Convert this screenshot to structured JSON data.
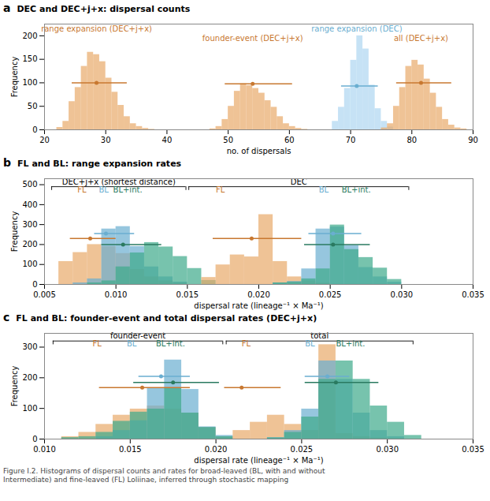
{
  "chart_data": [
    {
      "type": "histogram",
      "panel_label": "a",
      "title": "DEC and DEC+j+x: dispersal counts",
      "xlabel": "no. of dispersals",
      "ylabel": "Frequency",
      "xlim": [
        20,
        90
      ],
      "xticks": [
        20,
        30,
        40,
        50,
        60,
        70,
        80,
        90
      ],
      "ylim": [
        0,
        225
      ],
      "yticks": [
        0,
        50,
        100,
        150,
        200
      ],
      "grid": false,
      "series": [
        {
          "name": "range expansion (DEC+j+x)",
          "color": "#E8A96A",
          "median_color": "#C87830",
          "bins": [
            22,
            23,
            24,
            25,
            26,
            27,
            28,
            29,
            30,
            31,
            32,
            33,
            34,
            35,
            36,
            37,
            38
          ],
          "counts": [
            5,
            18,
            60,
            90,
            135,
            165,
            160,
            145,
            110,
            80,
            52,
            28,
            13,
            7,
            3,
            1
          ],
          "median": {
            "x": 28.5,
            "y": 100,
            "xmin": 24.5,
            "xmax": 33.5
          }
        },
        {
          "name": "founder-event (DEC+j+x)",
          "color": "#E8A96A",
          "median_color": "#C87830",
          "bins": [
            47,
            48,
            49,
            50,
            51,
            52,
            53,
            54,
            55,
            56,
            57,
            58,
            59,
            60,
            61,
            62,
            63
          ],
          "counts": [
            2,
            7,
            22,
            50,
            82,
            98,
            94,
            88,
            78,
            62,
            48,
            28,
            13,
            7,
            3,
            1
          ],
          "median": {
            "x": 54.0,
            "y": 98,
            "xmin": 49.5,
            "xmax": 60.5
          }
        },
        {
          "name": "range expansion (DEC)",
          "color": "#AED6F1",
          "median_color": "#6AAED0",
          "bins": [
            67,
            68,
            69,
            70,
            71,
            72,
            73,
            74,
            75,
            76,
            77
          ],
          "counts": [
            18,
            48,
            88,
            148,
            200,
            172,
            95,
            45,
            18,
            6
          ],
          "median": {
            "x": 71.0,
            "y": 93,
            "xmin": 68.5,
            "xmax": 74.5
          }
        },
        {
          "name": "all (DEC+j+x)",
          "color": "#E8A96A",
          "median_color": "#C87830",
          "bins": [
            75,
            76,
            77,
            78,
            79,
            80,
            81,
            82,
            83,
            84,
            85,
            86,
            87,
            88,
            89
          ],
          "counts": [
            4,
            13,
            50,
            90,
            135,
            148,
            138,
            108,
            78,
            48,
            22,
            10,
            4,
            2
          ],
          "median": {
            "x": 81.5,
            "y": 100,
            "xmin": 77.5,
            "xmax": 86.5
          }
        }
      ]
    },
    {
      "type": "histogram",
      "panel_label": "b",
      "title": "FL and BL: range expansion rates",
      "xlabel": "dispersal rate (lineage⁻¹ × Ma⁻¹)",
      "ylabel": "Frequency",
      "xlim": [
        0.005,
        0.035
      ],
      "xticks": [
        0.005,
        {
          "value": 0.01,
          "label": "0.010"
        },
        0.015,
        {
          "value": 0.02,
          "label": "0.020"
        },
        0.025,
        {
          "value": 0.03,
          "label": "0.030"
        },
        0.035
      ],
      "ylim": [
        0,
        530
      ],
      "yticks": [
        0,
        100,
        200,
        300,
        400,
        500
      ],
      "grid": false,
      "brackets": [
        {
          "x1": 0.0055,
          "x2": 0.0149,
          "y": 490,
          "label": "DEC+j+x (shortest distance)"
        },
        {
          "x1": 0.0151,
          "x2": 0.0305,
          "y": 490,
          "label": "DEC"
        }
      ],
      "series": [
        {
          "name": "FL",
          "color": "#E8A96A",
          "median_color": "#C87830",
          "bins": [
            0.006,
            0.007,
            0.008,
            0.009,
            0.01,
            0.011,
            0.012,
            0.013,
            0.014,
            0.015
          ],
          "counts": [
            115,
            160,
            200,
            190,
            155,
            75,
            38,
            18,
            8
          ],
          "median": {
            "x": 0.0082,
            "y": 230,
            "xmin": 0.0068,
            "xmax": 0.01
          },
          "label_x": 0.0073,
          "label_y": 460
        },
        {
          "name": "BL",
          "color": "#6AAED0",
          "median_color": "#6AAED0",
          "bins": [
            0.007,
            0.008,
            0.009,
            0.01,
            0.011,
            0.012,
            0.013,
            0.014,
            0.015
          ],
          "counts": [
            8,
            28,
            278,
            290,
            190,
            88,
            38,
            12
          ],
          "median": {
            "x": 0.0093,
            "y": 255,
            "xmin": 0.0085,
            "xmax": 0.0113
          },
          "label_x": 0.0088,
          "label_y": 460
        },
        {
          "name": "BL+int.",
          "color": "#3DAA8A",
          "median_color": "#2A7A60",
          "bins": [
            0.008,
            0.009,
            0.01,
            0.011,
            0.012,
            0.013,
            0.014,
            0.015,
            0.016,
            0.017
          ],
          "counts": [
            8,
            18,
            88,
            158,
            210,
            188,
            140,
            80,
            20
          ],
          "median": {
            "x": 0.0105,
            "y": 200,
            "xmin": 0.009,
            "xmax": 0.0132
          },
          "label_x": 0.0098,
          "label_y": 460
        },
        {
          "name": "FL",
          "color": "#E8A96A",
          "median_color": "#C87830",
          "bins": [
            0.016,
            0.017,
            0.018,
            0.019,
            0.02,
            0.021,
            0.022,
            0.023,
            0.024,
            0.025
          ],
          "counts": [
            35,
            98,
            148,
            138,
            350,
            115,
            38,
            18,
            6
          ],
          "median": {
            "x": 0.0195,
            "y": 230,
            "xmin": 0.0168,
            "xmax": 0.023
          },
          "label_x": 0.017,
          "label_y": 460
        },
        {
          "name": "BL",
          "color": "#6AAED0",
          "median_color": "#6AAED0",
          "bins": [
            0.021,
            0.022,
            0.023,
            0.024,
            0.025,
            0.026,
            0.027,
            0.028,
            0.029,
            0.03
          ],
          "counts": [
            8,
            15,
            78,
            278,
            288,
            195,
            85,
            38,
            12
          ],
          "median": {
            "x": 0.0252,
            "y": 255,
            "xmin": 0.0235,
            "xmax": 0.0272
          },
          "label_x": 0.0242,
          "label_y": 460
        },
        {
          "name": "BL+int.",
          "color": "#3DAA8A",
          "median_color": "#2A7A60",
          "bins": [
            0.021,
            0.022,
            0.023,
            0.024,
            0.025,
            0.026,
            0.027,
            0.028,
            0.029,
            0.03
          ],
          "counts": [
            8,
            12,
            28,
            78,
            298,
            175,
            135,
            82,
            25
          ],
          "median": {
            "x": 0.0252,
            "y": 200,
            "xmin": 0.0232,
            "xmax": 0.0278
          },
          "label_x": 0.0258,
          "label_y": 460
        }
      ]
    },
    {
      "type": "histogram",
      "panel_label": "c",
      "title": "FL and BL: founder-event and total dispersal rates (DEC+j+x)",
      "xlabel": "dispersal rate (lineage⁻¹ × Ma⁻¹)",
      "ylabel": "Frequency",
      "xlim": [
        0.01,
        0.035
      ],
      "xticks": [
        {
          "value": 0.01,
          "label": "0.010"
        },
        0.015,
        {
          "value": 0.02,
          "label": "0.020"
        },
        0.025,
        {
          "value": 0.03,
          "label": "0.030"
        },
        0.035
      ],
      "ylim": [
        0,
        345
      ],
      "yticks": [
        0,
        100,
        200,
        300
      ],
      "grid": false,
      "brackets": [
        {
          "x1": 0.0105,
          "x2": 0.0204,
          "y": 320,
          "label": "founder-event"
        },
        {
          "x1": 0.0206,
          "x2": 0.0315,
          "y": 320,
          "label": "total"
        }
      ],
      "series": [
        {
          "name": "FL",
          "color": "#E8A96A",
          "median_color": "#C87830",
          "bins": [
            0.011,
            0.012,
            0.013,
            0.014,
            0.015,
            0.016,
            0.017,
            0.018,
            0.019,
            0.02,
            0.021
          ],
          "counts": [
            8,
            22,
            48,
            78,
            98,
            108,
            98,
            85,
            38,
            8
          ],
          "median": {
            "x": 0.0157,
            "y": 168,
            "xmin": 0.0132,
            "xmax": 0.0185
          },
          "label_x": 0.0128,
          "label_y": 302
        },
        {
          "name": "BL",
          "color": "#6AAED0",
          "median_color": "#6AAED0",
          "bins": [
            0.013,
            0.014,
            0.015,
            0.016,
            0.017,
            0.018,
            0.019,
            0.02,
            0.021
          ],
          "counts": [
            8,
            28,
            60,
            165,
            258,
            162,
            40,
            12
          ],
          "median": {
            "x": 0.0168,
            "y": 205,
            "xmin": 0.0155,
            "xmax": 0.0185
          },
          "label_x": 0.0148,
          "label_y": 302
        },
        {
          "name": "BL+int.",
          "color": "#3DAA8A",
          "median_color": "#2A7A60",
          "bins": [
            0.011,
            0.012,
            0.013,
            0.014,
            0.015,
            0.016,
            0.017,
            0.018,
            0.019,
            0.02,
            0.021
          ],
          "counts": [
            5,
            8,
            22,
            58,
            88,
            98,
            165,
            85,
            38,
            8
          ],
          "median": {
            "x": 0.0175,
            "y": 185,
            "xmin": 0.0152,
            "xmax": 0.0202
          },
          "label_x": 0.0165,
          "label_y": 302
        },
        {
          "name": "FL",
          "color": "#E8A96A",
          "median_color": "#C87830",
          "bins": [
            0.021,
            0.022,
            0.023,
            0.024,
            0.025,
            0.026,
            0.027,
            0.028,
            0.029,
            0.03,
            0.031
          ],
          "counts": [
            28,
            55,
            78,
            48,
            28,
            308,
            18,
            8,
            4,
            2
          ],
          "median": {
            "x": 0.0215,
            "y": 168,
            "xmin": 0.0205,
            "xmax": 0.0238
          },
          "label_x": 0.0215,
          "label_y": 302
        },
        {
          "name": "BL",
          "color": "#6AAED0",
          "median_color": "#6AAED0",
          "bins": [
            0.023,
            0.024,
            0.025,
            0.026,
            0.027,
            0.028,
            0.029,
            0.03,
            0.031
          ],
          "counts": [
            5,
            28,
            98,
            255,
            195,
            85,
            28,
            8
          ],
          "median": {
            "x": 0.0265,
            "y": 205,
            "xmin": 0.0252,
            "xmax": 0.0278
          },
          "label_x": 0.0252,
          "label_y": 302
        },
        {
          "name": "BL+int.",
          "color": "#3DAA8A",
          "median_color": "#2A7A60",
          "bins": [
            0.023,
            0.024,
            0.025,
            0.026,
            0.027,
            0.028,
            0.029,
            0.03,
            0.031,
            0.032
          ],
          "counts": [
            4,
            22,
            72,
            195,
            255,
            195,
            108,
            55,
            12
          ],
          "median": {
            "x": 0.027,
            "y": 185,
            "xmin": 0.0252,
            "xmax": 0.0295
          },
          "label_x": 0.027,
          "label_y": 302
        }
      ],
      "caption": "Figure I.2. Histograms of dispersal counts and rates for broad-leaved (BL, with and without\nIntermediate) and fine-leaved (FL) Loliinae, inferred through stochastic mapping"
    }
  ]
}
